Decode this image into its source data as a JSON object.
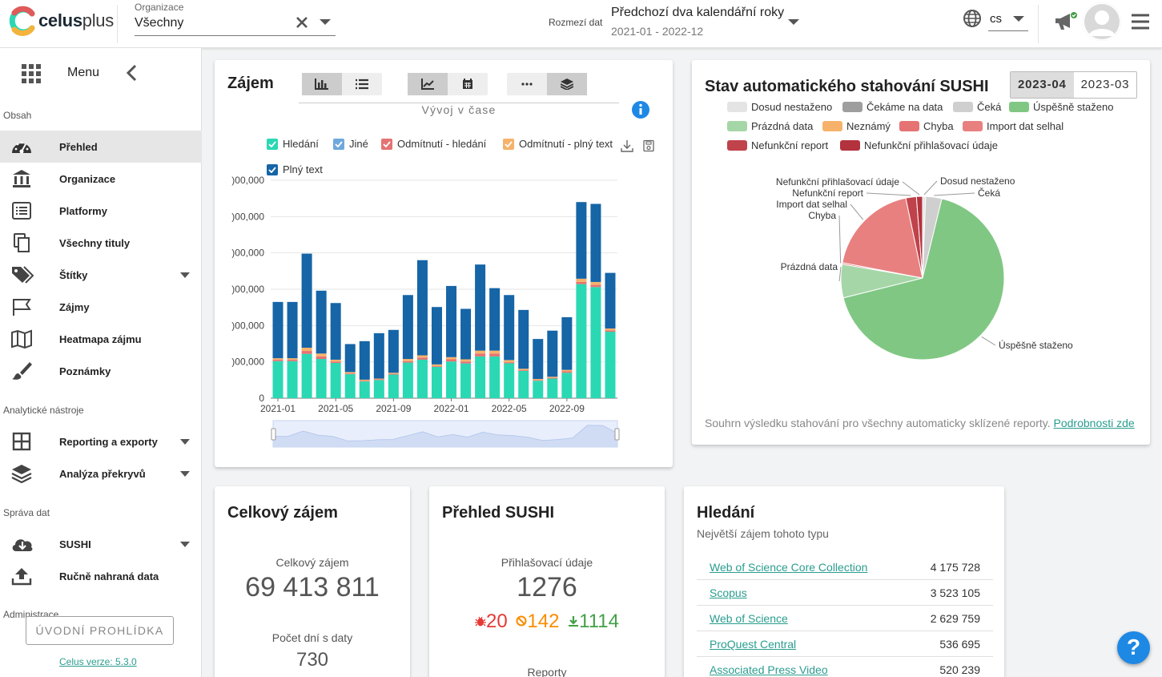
{
  "header": {
    "logo_text_bold": "celus",
    "logo_text_light": "plus",
    "org_label": "Organizace",
    "org_value": "Všechny",
    "range_label": "Rozmezí dat",
    "range_value": "Předchozí dva kalendářní roky",
    "range_sub": "2021-01 - 2022-12",
    "lang": "cs"
  },
  "sidebar": {
    "menu_label": "Menu",
    "section_content": "Obsah",
    "section_tools": "Analytické nástroje",
    "section_data": "Správa dat",
    "section_admin": "Administrace",
    "items": [
      {
        "label": "Přehled"
      },
      {
        "label": "Organizace"
      },
      {
        "label": "Platformy"
      },
      {
        "label": "Všechny tituly"
      },
      {
        "label": "Štítky"
      },
      {
        "label": "Zájmy"
      },
      {
        "label": "Heatmapa zájmu"
      },
      {
        "label": "Poznámky"
      },
      {
        "label": "Reporting a exporty"
      },
      {
        "label": "Analýza překryvů"
      },
      {
        "label": "SUSHI"
      },
      {
        "label": "Ručně nahraná data"
      }
    ],
    "tour_button": "ÚVODNÍ PROHLÍDKA",
    "version": "Celus verze: 5.3.0"
  },
  "interest": {
    "title": "Zájem",
    "subtitle": "Vývoj v čase",
    "colors": {
      "search": "#2ad8b4",
      "other": "#6fa8dc",
      "denied_search": "#e57373",
      "denied_full": "#f6b26b",
      "fulltext": "#1565a7"
    }
  },
  "chart_data": {
    "type": "bar",
    "stacked": true,
    "categories": [
      "2021-01",
      "2021-02",
      "2021-03",
      "2021-04",
      "2021-05",
      "2021-06",
      "2021-07",
      "2021-08",
      "2021-09",
      "2021-10",
      "2021-11",
      "2021-12",
      "2022-01",
      "2022-02",
      "2022-03",
      "2022-04",
      "2022-05",
      "2022-06",
      "2022-07",
      "2022-08",
      "2022-09",
      "2022-10",
      "2022-11",
      "2022-12"
    ],
    "tick_labels": [
      "2021-01",
      "2021-05",
      "2021-09",
      "2022-01",
      "2022-05",
      "2022-09"
    ],
    "y_tick_labels": [
      ")00,000",
      ")00,000",
      ")00,000",
      ")00,000",
      ")00,000",
      ")00,000",
      "0"
    ],
    "ylim": [
      0,
      6000000
    ],
    "series": [
      {
        "name": "Hledání",
        "values": [
          1020000,
          1020000,
          1220000,
          1080000,
          970000,
          660000,
          460000,
          500000,
          650000,
          980000,
          1060000,
          860000,
          1010000,
          950000,
          1150000,
          1150000,
          960000,
          750000,
          480000,
          540000,
          700000,
          3140000,
          3060000,
          1830000
        ]
      },
      {
        "name": "Jiné",
        "values": [
          0,
          0,
          0,
          0,
          0,
          0,
          0,
          0,
          0,
          0,
          0,
          0,
          0,
          10000,
          0,
          0,
          0,
          0,
          0,
          0,
          0,
          0,
          0,
          0
        ]
      },
      {
        "name": "Odmítnutí - hledání",
        "values": [
          40000,
          40000,
          80000,
          70000,
          40000,
          20000,
          20000,
          20000,
          20000,
          40000,
          60000,
          20000,
          60000,
          50000,
          80000,
          80000,
          30000,
          20000,
          20000,
          20000,
          40000,
          60000,
          60000,
          40000
        ]
      },
      {
        "name": "Odmítnutí - plný text",
        "values": [
          40000,
          40000,
          90000,
          80000,
          50000,
          40000,
          30000,
          20000,
          30000,
          60000,
          60000,
          50000,
          60000,
          60000,
          80000,
          80000,
          60000,
          40000,
          30000,
          30000,
          40000,
          90000,
          80000,
          50000
        ]
      },
      {
        "name": "Plný text",
        "values": [
          1550000,
          1550000,
          2590000,
          1730000,
          1560000,
          770000,
          1060000,
          1250000,
          1180000,
          1760000,
          2620000,
          1580000,
          1960000,
          1390000,
          2370000,
          1720000,
          1790000,
          1620000,
          1100000,
          1270000,
          1450000,
          2110000,
          2150000,
          1530000
        ]
      }
    ]
  },
  "sushi": {
    "title": "Stav automatického stahování SUSHI",
    "tabs": [
      "2023-04",
      "2023-03"
    ],
    "legend": [
      {
        "name": "Dosud nestaženo",
        "color": "#e4e4e4"
      },
      {
        "name": "Čekáme na data",
        "color": "#9e9e9e"
      },
      {
        "name": "Čeká",
        "color": "#cfcfcf"
      },
      {
        "name": "Úspěšně staženo",
        "color": "#81c784"
      },
      {
        "name": "Prázdná data",
        "color": "#a5d6a7"
      },
      {
        "name": "Neznámý",
        "color": "#f6b26b"
      },
      {
        "name": "Chyba",
        "color": "#e57373"
      },
      {
        "name": "Import dat selhal",
        "color": "#e88080"
      },
      {
        "name": "Nefunkční report",
        "color": "#c0424b"
      },
      {
        "name": "Nefunkční přihlašovací údaje",
        "color": "#b3323d"
      }
    ],
    "pie": [
      {
        "name": "Dosud nestaženo",
        "value": 0.6,
        "color": "#e4e4e4"
      },
      {
        "name": "Čeká",
        "value": 3.2,
        "color": "#cfcfcf"
      },
      {
        "name": "Úspěšně staženo",
        "value": 67.3,
        "color": "#81c784"
      },
      {
        "name": "Prázdná data",
        "value": 6.6,
        "color": "#a5d6a7"
      },
      {
        "name": "Chyba",
        "value": 0.3,
        "color": "#e57373"
      },
      {
        "name": "Import dat selhal",
        "value": 18.7,
        "color": "#e88080"
      },
      {
        "name": "Nefunkční report",
        "value": 2.1,
        "color": "#c0424b"
      },
      {
        "name": "Nefunkční přihlašovací údaje",
        "value": 1.2,
        "color": "#b3323d"
      }
    ],
    "footer_text": "Souhrn výsledku stahování pro všechny automaticky sklízené reporty.",
    "footer_link": "Podrobnosti zde"
  },
  "total": {
    "title": "Celkový zájem",
    "label": "Celkový zájem",
    "value": "69 413 811",
    "days_label": "Počet dní s daty",
    "days_value": "730"
  },
  "sushi_overview": {
    "title": "Přehled SUSHI",
    "label": "Přihlašovací údaje",
    "value": "1276",
    "broken": "20",
    "disabled": "142",
    "ok": "1114",
    "reports_label": "Reporty"
  },
  "search": {
    "title": "Hledání",
    "subtitle": "Největší zájem tohoto typu",
    "rows": [
      {
        "name": "Web of Science Core Collection",
        "value": "4 175 728"
      },
      {
        "name": "Scopus",
        "value": "3 523 105"
      },
      {
        "name": "Web of Science",
        "value": "2 629 759"
      },
      {
        "name": "ProQuest Central",
        "value": "536 695"
      },
      {
        "name": "Associated Press Video",
        "value": "520 239"
      }
    ]
  },
  "help_label": "?"
}
